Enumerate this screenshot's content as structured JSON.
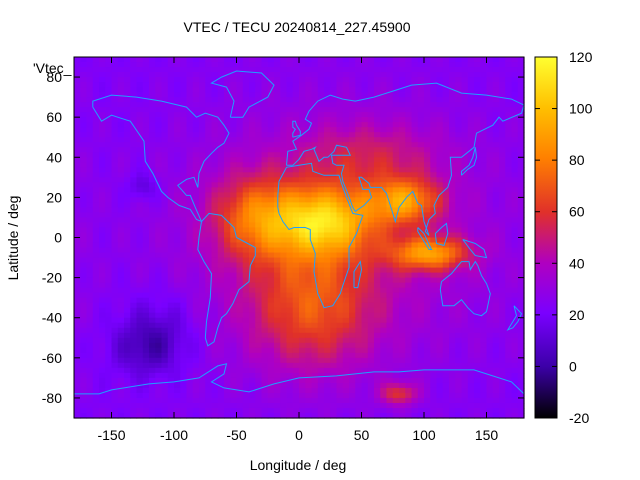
{
  "chart_data": {
    "type": "heatmap",
    "title": "VTEC / TECU 20240814_227.45900",
    "series_key": "'Vtec_",
    "xlabel": "Longitude / deg",
    "ylabel": "Latitude / deg",
    "xlim": [
      -180,
      180
    ],
    "ylim": [
      -90,
      90
    ],
    "x_ticks": [
      -150,
      -100,
      -50,
      0,
      50,
      100,
      150
    ],
    "y_ticks": [
      -80,
      -60,
      -40,
      -20,
      0,
      20,
      40,
      60,
      80
    ],
    "colorbar": {
      "range": [
        -20,
        120
      ],
      "ticks": [
        -20,
        0,
        20,
        40,
        60,
        80,
        100,
        120
      ],
      "palette": [
        "#000000",
        "#3c00a8",
        "#7a00ff",
        "#b000c0",
        "#e0302a",
        "#ff8000",
        "#ffc000",
        "#ffff30"
      ]
    },
    "features": [
      {
        "name": "equatorial crest Africa",
        "lon": 20,
        "lat": 8,
        "vtec": 110
      },
      {
        "name": "crest India / Bay of Bengal",
        "lon": 85,
        "lat": 18,
        "vtec": 100
      },
      {
        "name": "crest Indonesia / Indian Ocean",
        "lon": 105,
        "lat": -8,
        "vtec": 105
      },
      {
        "name": "northern Atlantic crest",
        "lon": -35,
        "lat": 10,
        "vtec": 70
      },
      {
        "name": "southern Atlantic anomaly",
        "lon": 10,
        "lat": -35,
        "vtec": 60
      },
      {
        "name": "mid-latitude region",
        "lon": 55,
        "lat": 40,
        "vtec": 45
      },
      {
        "name": "background Pacific",
        "lon": -150,
        "lat": 0,
        "vtec": 22
      },
      {
        "name": "low south-east Pacific",
        "lon": -120,
        "lat": -55,
        "vtec": 2
      },
      {
        "name": "low eastern Pacific",
        "lon": -110,
        "lat": -40,
        "vtec": 8
      },
      {
        "name": "low north Pacific patch",
        "lon": -125,
        "lat": 25,
        "vtec": 8
      },
      {
        "name": "Antarctic patch",
        "lon": 80,
        "lat": -78,
        "vtec": 60
      }
    ]
  }
}
